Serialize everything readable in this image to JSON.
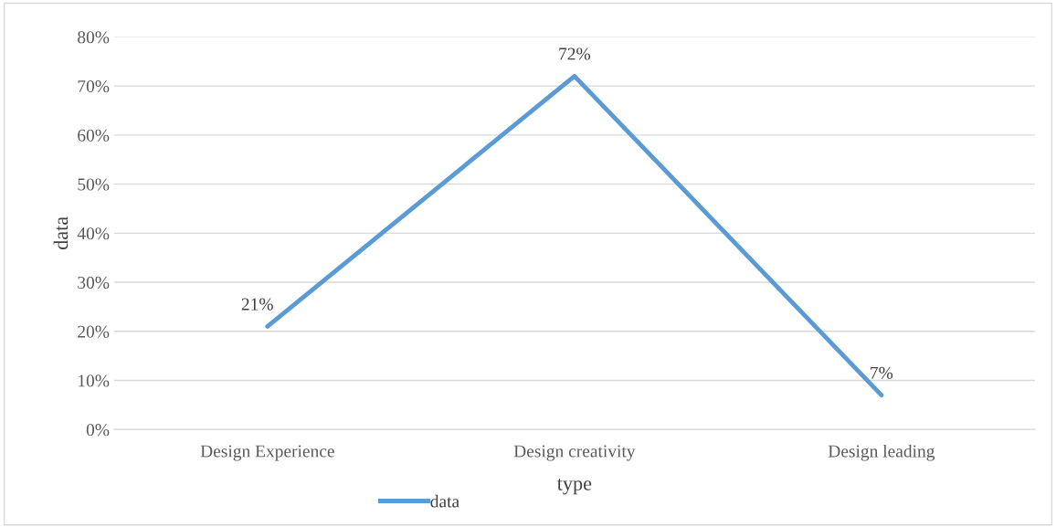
{
  "chart_data": {
    "type": "line",
    "xlabel": "type",
    "ylabel": "data",
    "categories": [
      "Design Experience",
      "Design creativity",
      "Design leading"
    ],
    "series": [
      {
        "name": "data",
        "color": "#5b9bd5",
        "values": [
          21,
          72,
          7
        ],
        "value_labels": [
          "21%",
          "72%",
          "7%"
        ]
      }
    ],
    "ylim": [
      0,
      80
    ],
    "yticks": [
      {
        "value": 0,
        "label": "0%"
      },
      {
        "value": 10,
        "label": "10%"
      },
      {
        "value": 20,
        "label": "20%"
      },
      {
        "value": 30,
        "label": "30%"
      },
      {
        "value": 40,
        "label": "40%"
      },
      {
        "value": 50,
        "label": "50%"
      },
      {
        "value": 60,
        "label": "60%"
      },
      {
        "value": 70,
        "label": "70%"
      },
      {
        "value": 80,
        "label": "80%"
      }
    ],
    "grid": "y",
    "legend": "bottom",
    "marker": "none",
    "line_style": "solid"
  }
}
